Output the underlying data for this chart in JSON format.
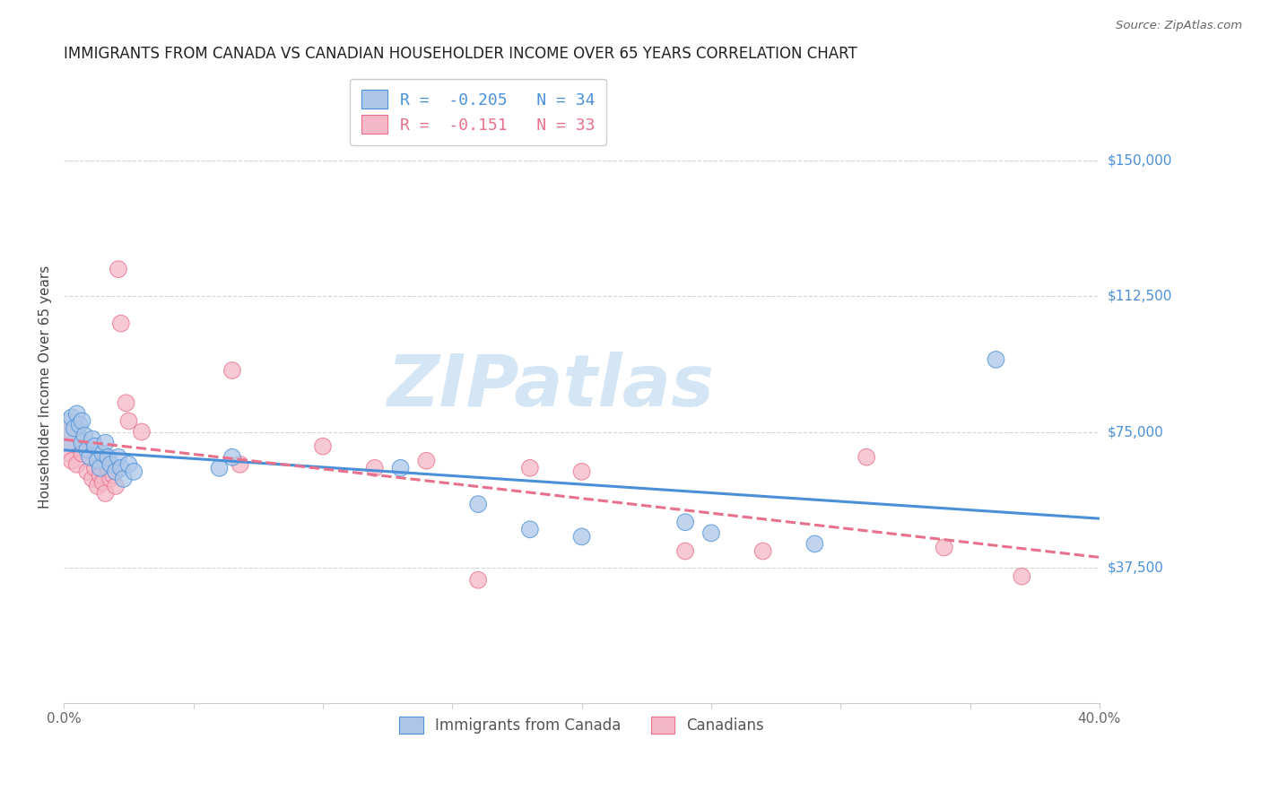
{
  "title": "IMMIGRANTS FROM CANADA VS CANADIAN HOUSEHOLDER INCOME OVER 65 YEARS CORRELATION CHART",
  "source": "Source: ZipAtlas.com",
  "ylabel": "Householder Income Over 65 years",
  "xlim": [
    0.0,
    0.4
  ],
  "ylim": [
    0,
    175000
  ],
  "yticks": [
    37500,
    75000,
    112500,
    150000
  ],
  "ytick_labels": [
    "$37,500",
    "$75,000",
    "$112,500",
    "$150,000"
  ],
  "legend_labels": [
    "Immigrants from Canada",
    "Canadians"
  ],
  "blue_r": -0.205,
  "blue_n": 34,
  "pink_r": -0.151,
  "pink_n": 33,
  "blue_color": "#adc6e8",
  "pink_color": "#f5b8c8",
  "blue_line_color": "#4a90d9",
  "pink_line_color": "#e8708a",
  "blue_edge_color": "#4a90d9",
  "pink_edge_color": "#e8708a",
  "watermark_text": "ZIPatlas",
  "watermark_color": "#d0e4f5",
  "blue_points_x": [
    0.001,
    0.003,
    0.004,
    0.005,
    0.006,
    0.007,
    0.007,
    0.008,
    0.009,
    0.01,
    0.011,
    0.012,
    0.013,
    0.014,
    0.015,
    0.016,
    0.017,
    0.018,
    0.02,
    0.021,
    0.022,
    0.023,
    0.025,
    0.027,
    0.06,
    0.065,
    0.13,
    0.16,
    0.18,
    0.2,
    0.24,
    0.25,
    0.29,
    0.36
  ],
  "blue_points_y": [
    75000,
    79000,
    76000,
    80000,
    77000,
    78000,
    72000,
    74000,
    70000,
    68000,
    73000,
    71000,
    67000,
    65000,
    69000,
    72000,
    68000,
    66000,
    64000,
    68000,
    65000,
    62000,
    66000,
    64000,
    65000,
    68000,
    65000,
    55000,
    48000,
    46000,
    50000,
    47000,
    44000,
    95000
  ],
  "pink_points_x": [
    0.001,
    0.003,
    0.005,
    0.007,
    0.009,
    0.011,
    0.012,
    0.013,
    0.014,
    0.015,
    0.016,
    0.017,
    0.018,
    0.019,
    0.02,
    0.021,
    0.022,
    0.024,
    0.025,
    0.03,
    0.065,
    0.068,
    0.1,
    0.12,
    0.14,
    0.16,
    0.18,
    0.2,
    0.24,
    0.27,
    0.31,
    0.34,
    0.37
  ],
  "pink_points_y": [
    72000,
    67000,
    66000,
    69000,
    64000,
    62000,
    65000,
    60000,
    63000,
    61000,
    58000,
    65000,
    62000,
    63000,
    60000,
    120000,
    105000,
    83000,
    78000,
    75000,
    92000,
    66000,
    71000,
    65000,
    67000,
    34000,
    65000,
    64000,
    42000,
    42000,
    68000,
    43000,
    35000
  ],
  "blue_marker_size": 180,
  "pink_marker_size": 180,
  "blue_large_marker_size": 900,
  "pink_large_marker_size": 900
}
